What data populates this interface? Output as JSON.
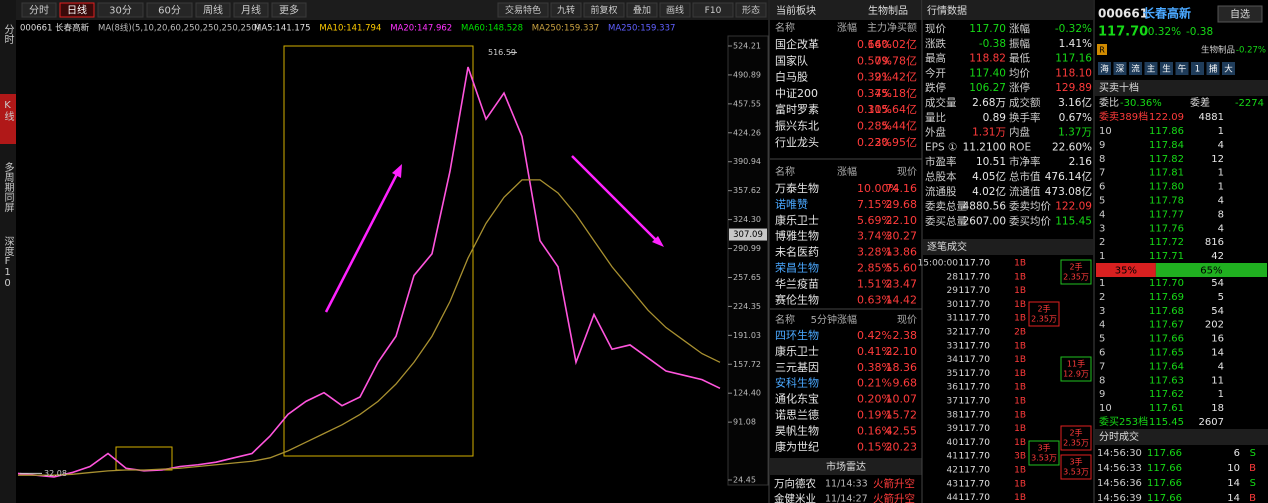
{
  "sidebar_tabs": [
    "分时",
    "K线",
    "多周期同屏",
    "深度F10"
  ],
  "toolbar": {
    "left": [
      "分时",
      "日线",
      "30分",
      "60分",
      "周线",
      "月线",
      "更多"
    ],
    "active": 1,
    "right": [
      "交易特色",
      "九转",
      "前复权",
      "叠加",
      "画线",
      "F10",
      "形态"
    ]
  },
  "chart_data": {
    "type": "line",
    "title": "000661 长春高新",
    "ma_spec": "MA(8线)(5,10,20,60,250,250,250,250)",
    "ma_legend": [
      {
        "label": "MA5:141.175",
        "color": "#e0e0e0"
      },
      {
        "label": "MA10:141.794",
        "color": "#ffcc00"
      },
      {
        "label": "MA20:147.962",
        "color": "#ff33ff"
      },
      {
        "label": "MA60:148.528",
        "color": "#00e000"
      },
      {
        "label": "MA250:159.337",
        "color": "#c8a040"
      },
      {
        "label": "MA250:159.337",
        "color": "#6060ff"
      }
    ],
    "ylim": [
      18.7,
      535.7
    ],
    "yticks": [
      24.45,
      91.08,
      {
        "value": 124.4,
        "label": "124.40"
      },
      157.72,
      191.03,
      224.35,
      257.65,
      290.99,
      {
        "value": 324.3,
        "label": "324.30"
      },
      357.62,
      390.94,
      424.26,
      457.55,
      490.89,
      524.21
    ],
    "series": [
      {
        "color": "#ff55dd",
        "values": [
          32,
          30,
          28,
          33,
          40,
          55,
          38,
          35,
          36,
          40,
          42,
          45,
          50,
          55,
          75,
          100,
          115,
          125,
          110,
          120,
          160,
          190,
          260,
          285,
          380,
          500,
          440,
          470,
          420,
          300,
          270,
          160,
          215,
          175,
          180,
          165,
          150,
          145,
          140,
          130
        ]
      },
      {
        "color": "#a89030",
        "values": [
          30,
          30,
          30,
          31,
          33,
          35,
          36,
          36,
          37,
          38,
          40,
          42,
          44,
          46,
          50,
          58,
          68,
          78,
          88,
          100,
          115,
          135,
          160,
          190,
          230,
          280,
          320,
          350,
          370,
          370,
          355,
          330,
          300,
          270,
          245,
          220,
          200,
          185,
          170,
          160
        ]
      }
    ],
    "high_label": 516.59,
    "low_label": 32.08,
    "current_price": 307.09
  },
  "sector_panel": {
    "title": "当前板块",
    "sector": "生物制品",
    "tables": [
      {
        "columns": [
          "名称",
          "涨幅",
          "主力净买额"
        ],
        "highlight": [],
        "rows": [
          [
            "国企改革",
            "0.66%",
            "140.02亿"
          ],
          [
            "国家队",
            "0.50%",
            "79.78亿"
          ],
          [
            "白马股",
            "0.39%",
            "21.42亿"
          ],
          [
            "中证200",
            "0.37%",
            "45.18亿"
          ],
          [
            "富时罗素",
            "0.30%",
            "115.64亿"
          ],
          [
            "振兴东北",
            "0.28%",
            "5.44亿"
          ],
          [
            "行业龙头",
            "0.23%",
            "20.95亿"
          ]
        ]
      },
      {
        "columns": [
          "名称",
          "涨幅",
          "现价"
        ],
        "highlight": [
          1,
          5
        ],
        "rows": [
          [
            "万泰生物",
            "10.00%",
            "74.16"
          ],
          [
            "诺唯赞",
            "7.15%",
            "29.68"
          ],
          [
            "康乐卫士",
            "5.69%",
            "22.10"
          ],
          [
            "博雅生物",
            "3.74%",
            "30.27"
          ],
          [
            "未名医药",
            "3.28%",
            "13.86"
          ],
          [
            "荣昌生物",
            "2.85%",
            "55.60"
          ],
          [
            "华兰疫苗",
            "1.51%",
            "23.47"
          ],
          [
            "赛伦生物",
            "0.63%",
            "14.42"
          ]
        ]
      },
      {
        "columns": [
          "名称",
          "5分钟涨幅",
          "现价"
        ],
        "highlight": [
          0,
          3
        ],
        "rows": [
          [
            "四环生物",
            "0.42%",
            "2.38"
          ],
          [
            "康乐卫士",
            "0.41%",
            "22.10"
          ],
          [
            "三元基因",
            "0.38%",
            "18.36"
          ],
          [
            "安科生物",
            "0.21%",
            "9.68"
          ],
          [
            "通化东宝",
            "0.20%",
            "10.07"
          ],
          [
            "诺思兰德",
            "0.19%",
            "15.72"
          ],
          [
            "昊帆生物",
            "0.16%",
            "42.55"
          ],
          [
            "康为世纪",
            "0.15%",
            "20.23"
          ]
        ]
      }
    ],
    "radar": {
      "title": "市场雷达",
      "rows": [
        [
          "万向德农",
          "11/14:33",
          "火箭升空"
        ],
        [
          "金健米业",
          "11/14:27",
          "火箭升空"
        ]
      ]
    }
  },
  "quote_panel": {
    "title": "行情数据",
    "rows": [
      [
        "现价",
        "117.70",
        "涨幅",
        "-0.32%"
      ],
      [
        "涨跌",
        "-0.38",
        "振幅",
        "1.41%"
      ],
      [
        "最高",
        "118.82",
        "最低",
        "117.16"
      ],
      [
        "今开",
        "117.40",
        "均价",
        "118.10"
      ],
      [
        "跌停",
        "106.27",
        "涨停",
        "129.89"
      ],
      [
        "成交量",
        "2.68万",
        "成交额",
        "3.16亿"
      ],
      [
        "量比",
        "0.89",
        "换手率",
        "0.67%"
      ],
      [
        "外盘",
        "1.31万",
        "内盘",
        "1.37万"
      ],
      [
        "EPS ①",
        "11.2100",
        "ROE",
        "22.60%"
      ],
      [
        "市盈率",
        "10.51",
        "市净率",
        "2.16"
      ],
      [
        "总股本",
        "4.05亿",
        "总市值",
        "476.14亿"
      ],
      [
        "流通股",
        "4.02亿",
        "流通值",
        "473.08亿"
      ],
      [
        "委卖总量",
        "4880.56",
        "委卖均价",
        "122.09"
      ],
      [
        "委买总量",
        "2607.00",
        "委买均价",
        "115.45"
      ]
    ],
    "value_colors": [
      "gg",
      "gw",
      "rg",
      "gr",
      "gr",
      "ww",
      "ww",
      "rg",
      "ww",
      "ww",
      "ww",
      "ww",
      "wr",
      "wg"
    ]
  },
  "trades_panel": {
    "title": "逐笔成交",
    "rows": [
      [
        "15:00:00",
        "117.70",
        "1B"
      ],
      [
        "28",
        "117.70",
        "1B"
      ],
      [
        "29",
        "117.70",
        "1B"
      ],
      [
        "30",
        "117.70",
        "1B"
      ],
      [
        "31",
        "117.70",
        "1B"
      ],
      [
        "32",
        "117.70",
        "2B"
      ],
      [
        "33",
        "117.70",
        "1B"
      ],
      [
        "34",
        "117.70",
        "1B"
      ],
      [
        "35",
        "117.70",
        "1B"
      ],
      [
        "36",
        "117.70",
        "1B"
      ],
      [
        "37",
        "117.70",
        "1B"
      ],
      [
        "38",
        "117.70",
        "1B"
      ],
      [
        "39",
        "117.70",
        "1B"
      ],
      [
        "40",
        "117.70",
        "1B"
      ],
      [
        "41",
        "117.70",
        "3B"
      ],
      [
        "42",
        "117.70",
        "1B"
      ],
      [
        "43",
        "117.70",
        "1B"
      ],
      [
        "44",
        "117.70",
        "1B"
      ]
    ],
    "notes": [
      [
        "2手",
        "2.35万"
      ],
      [
        "2手",
        "2.35万"
      ],
      [
        "11手",
        "12.9万"
      ],
      [
        "2手",
        "2.35万"
      ],
      [
        "3手",
        "3.53万"
      ],
      [
        "3手",
        "3.53万"
      ]
    ]
  },
  "stock_panel": {
    "code": "000661",
    "name": "长春高新",
    "watch": "自选",
    "price": "117.70",
    "change_pct": "-0.32%",
    "change": "-0.38",
    "sector": "生物制品",
    "sector_change": "-0.27%",
    "badge": "R",
    "tools": [
      "海",
      "深",
      "流",
      "主",
      "生",
      "午",
      "1",
      "捕",
      "大"
    ],
    "book_title": "买卖十档",
    "ratio_label": "委比",
    "ratio": "-30.36%",
    "diff_label": "委差",
    "diff": "-2274",
    "ask_summary": [
      "委卖389档",
      "122.09",
      "4881"
    ],
    "asks": [
      [
        "10",
        "117.86",
        "1"
      ],
      [
        "9",
        "117.84",
        "4"
      ],
      [
        "8",
        "117.82",
        "12"
      ],
      [
        "7",
        "117.81",
        "1"
      ],
      [
        "6",
        "117.80",
        "1"
      ],
      [
        "5",
        "117.78",
        "4"
      ],
      [
        "4",
        "117.77",
        "8"
      ],
      [
        "3",
        "117.76",
        "4"
      ],
      [
        "2",
        "117.72",
        "816"
      ],
      [
        "1",
        "117.71",
        "42"
      ]
    ],
    "split": {
      "values": [
        35,
        65
      ],
      "value_labels": [
        "35%",
        "65%"
      ]
    },
    "bids": [
      [
        "1",
        "117.70",
        "54"
      ],
      [
        "2",
        "117.69",
        "5"
      ],
      [
        "3",
        "117.68",
        "54"
      ],
      [
        "4",
        "117.67",
        "202"
      ],
      [
        "5",
        "117.66",
        "16"
      ],
      [
        "6",
        "117.65",
        "14"
      ],
      [
        "7",
        "117.64",
        "4"
      ],
      [
        "8",
        "117.63",
        "11"
      ],
      [
        "9",
        "117.62",
        "1"
      ],
      [
        "10",
        "117.61",
        "18"
      ]
    ],
    "bid_summary": [
      "委买253档",
      "115.45",
      "2607"
    ],
    "ticks_title": "分时成交",
    "ticks": [
      [
        "14:56:30",
        "117.66",
        "6",
        "S"
      ],
      [
        "14:56:33",
        "117.66",
        "10",
        "B"
      ],
      [
        "14:56:36",
        "117.66",
        "14",
        "S"
      ],
      [
        "14:56:39",
        "117.66",
        "14",
        "B"
      ]
    ]
  }
}
